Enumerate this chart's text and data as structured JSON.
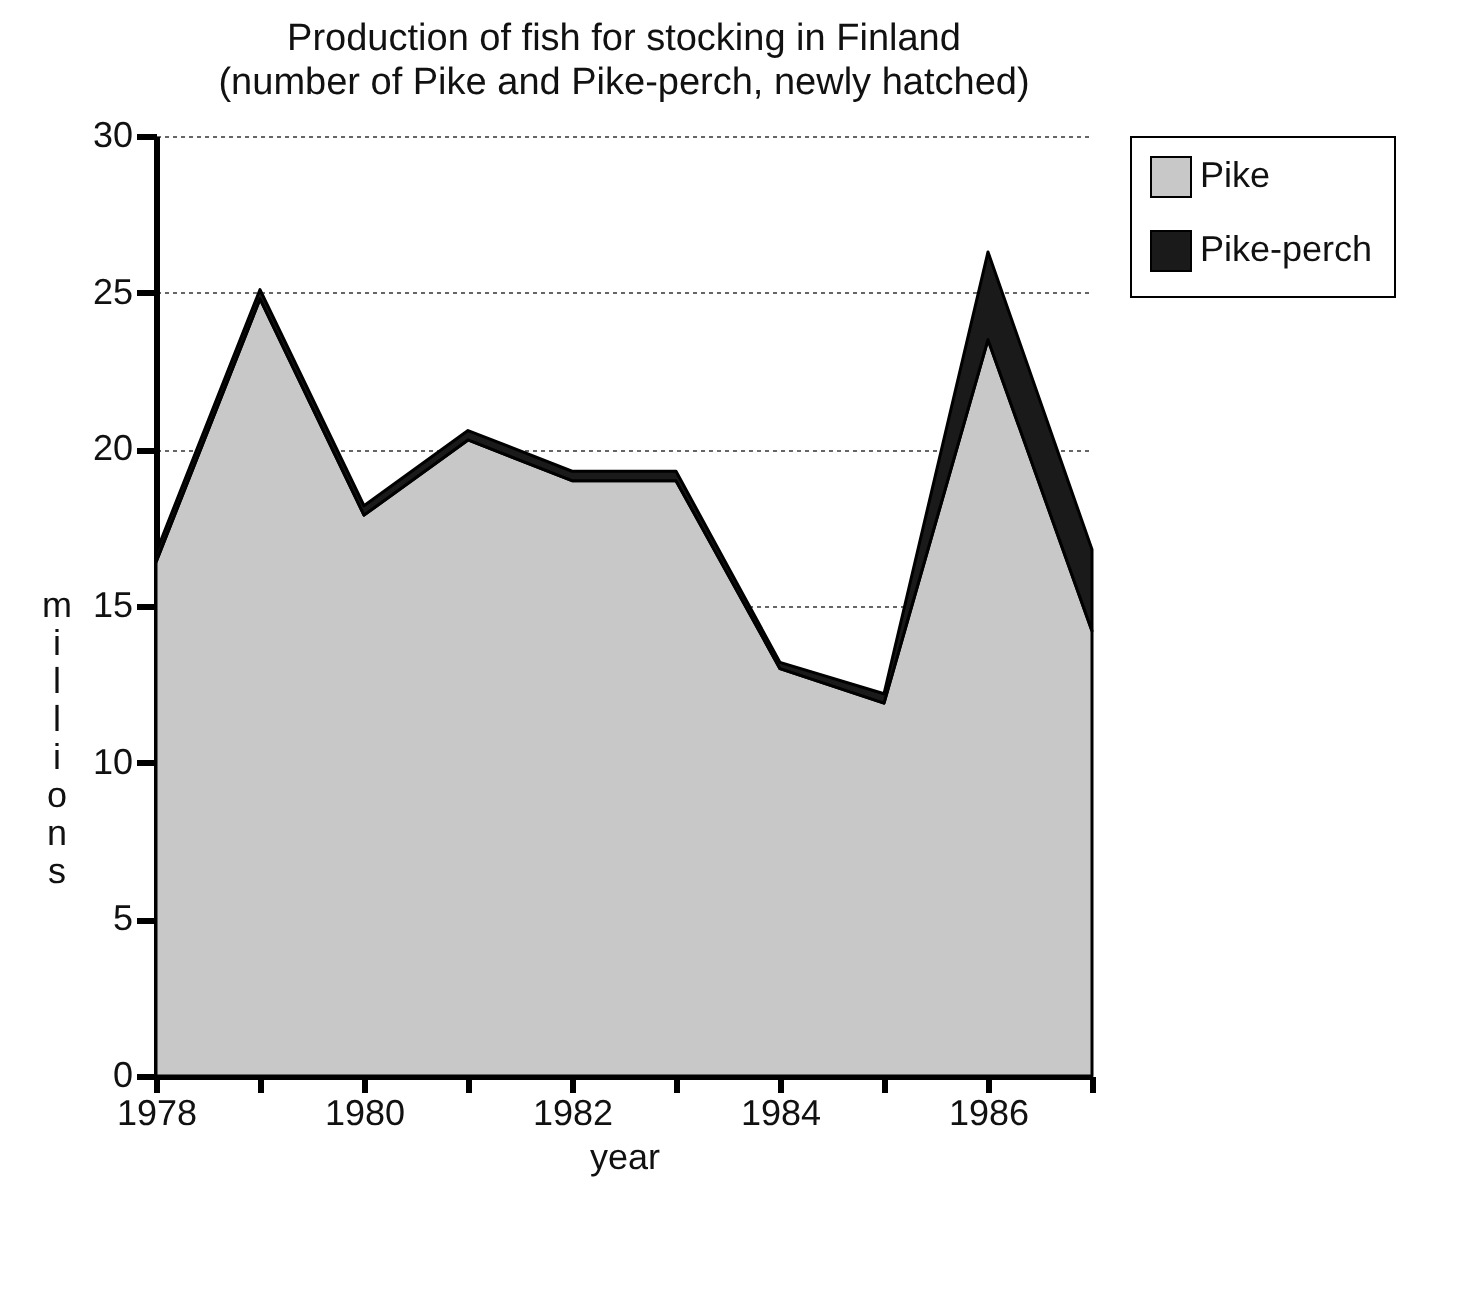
{
  "chart_data": {
    "type": "area",
    "stacked": true,
    "title": "Production of fish for stocking in Finland",
    "subtitle": "(number of Pike and Pike-perch, newly hatched)",
    "xlabel": "year",
    "ylabel": "millions",
    "x": [
      1978,
      1979,
      1980,
      1981,
      1982,
      1983,
      1984,
      1985,
      1986,
      1987
    ],
    "series": [
      {
        "name": "Pike",
        "color": "#c8c8c8",
        "values": [
          16.4,
          24.8,
          17.9,
          20.3,
          19.0,
          19.0,
          13.0,
          11.9,
          23.5,
          14.2
        ]
      },
      {
        "name": "Pike-perch",
        "color": "#1a1a1a",
        "values": [
          0.3,
          0.3,
          0.3,
          0.3,
          0.3,
          0.3,
          0.2,
          0.3,
          2.8,
          2.6
        ]
      }
    ],
    "xlim": [
      1978,
      1987
    ],
    "ylim": [
      0,
      30
    ],
    "xticks": [
      1978,
      {
        "value": 1979,
        "label": null
      },
      1980,
      {
        "value": 1981,
        "label": null
      },
      1982,
      {
        "value": 1983,
        "label": null
      },
      1984,
      {
        "value": 1985,
        "label": null
      },
      1986,
      {
        "value": 1987,
        "label": null
      }
    ],
    "yticks": [
      0,
      5,
      10,
      15,
      20,
      25,
      30
    ],
    "grid": "y",
    "legend": "top right"
  }
}
